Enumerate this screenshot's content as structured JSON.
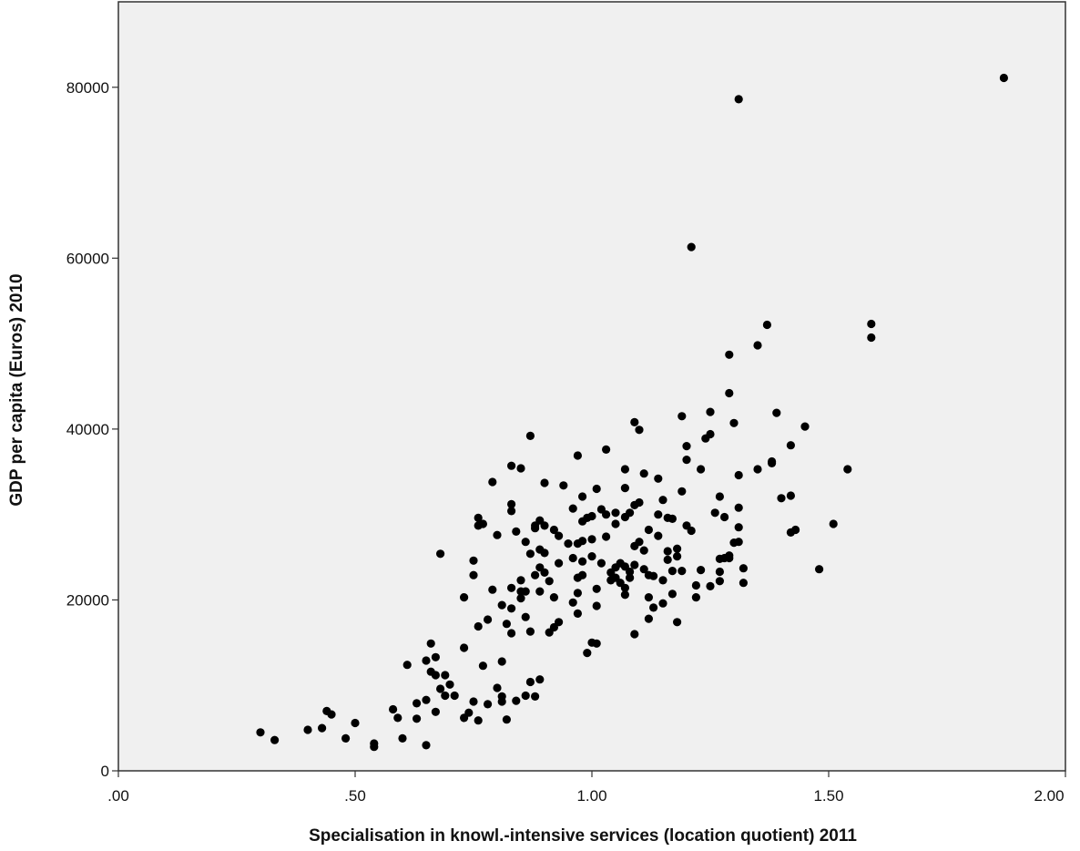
{
  "chart_data": {
    "type": "scatter",
    "xlabel": "Specialisation in knowl.-intensive services (location quotient) 2011",
    "ylabel": "GDP per capita (Euros) 2010",
    "xlim": [
      0,
      2
    ],
    "ylim": [
      0,
      90000
    ],
    "x_ticks": [
      0,
      0.5,
      1,
      1.5,
      2
    ],
    "x_tick_labels": [
      ".00",
      ".50",
      "1.00",
      "1.50",
      "2.00"
    ],
    "y_ticks": [
      0,
      20000,
      40000,
      60000,
      80000
    ],
    "y_tick_labels": [
      "0",
      "20000",
      "40000",
      "60000",
      "80000"
    ],
    "grid": false,
    "plot_background": "#f0f0f0",
    "point_color": "#000000",
    "points": [
      [
        0.3,
        4500
      ],
      [
        0.33,
        3600
      ],
      [
        0.4,
        4800
      ],
      [
        0.43,
        5000
      ],
      [
        0.44,
        7000
      ],
      [
        0.45,
        6600
      ],
      [
        0.48,
        3800
      ],
      [
        0.5,
        5600
      ],
      [
        0.54,
        3200
      ],
      [
        0.54,
        2800
      ],
      [
        0.58,
        7200
      ],
      [
        0.59,
        6200
      ],
      [
        0.6,
        3800
      ],
      [
        0.61,
        12400
      ],
      [
        0.63,
        7900
      ],
      [
        0.63,
        6100
      ],
      [
        0.65,
        3000
      ],
      [
        0.65,
        8300
      ],
      [
        0.65,
        12900
      ],
      [
        0.66,
        14900
      ],
      [
        0.66,
        11600
      ],
      [
        0.67,
        13300
      ],
      [
        0.67,
        11200
      ],
      [
        0.67,
        6900
      ],
      [
        0.68,
        9600
      ],
      [
        0.68,
        25400
      ],
      [
        0.69,
        11200
      ],
      [
        0.69,
        8800
      ],
      [
        0.7,
        10100
      ],
      [
        0.71,
        8800
      ],
      [
        0.73,
        6200
      ],
      [
        0.73,
        20300
      ],
      [
        0.73,
        14400
      ],
      [
        0.74,
        6800
      ],
      [
        0.75,
        8100
      ],
      [
        0.75,
        22900
      ],
      [
        0.75,
        24600
      ],
      [
        0.76,
        28700
      ],
      [
        0.76,
        29600
      ],
      [
        0.76,
        16900
      ],
      [
        0.76,
        5900
      ],
      [
        0.77,
        12300
      ],
      [
        0.77,
        28900
      ],
      [
        0.78,
        17700
      ],
      [
        0.78,
        7800
      ],
      [
        0.79,
        33800
      ],
      [
        0.79,
        21200
      ],
      [
        0.8,
        27600
      ],
      [
        0.8,
        9700
      ],
      [
        0.81,
        8100
      ],
      [
        0.81,
        19400
      ],
      [
        0.81,
        12800
      ],
      [
        0.81,
        8700
      ],
      [
        0.82,
        6000
      ],
      [
        0.82,
        17200
      ],
      [
        0.83,
        30400
      ],
      [
        0.83,
        31200
      ],
      [
        0.83,
        21400
      ],
      [
        0.83,
        19000
      ],
      [
        0.83,
        16100
      ],
      [
        0.83,
        35700
      ],
      [
        0.84,
        8200
      ],
      [
        0.84,
        28000
      ],
      [
        0.85,
        35400
      ],
      [
        0.85,
        22300
      ],
      [
        0.85,
        21000
      ],
      [
        0.85,
        20200
      ],
      [
        0.86,
        26800
      ],
      [
        0.86,
        21000
      ],
      [
        0.86,
        18000
      ],
      [
        0.86,
        8800
      ],
      [
        0.87,
        39200
      ],
      [
        0.87,
        25400
      ],
      [
        0.87,
        16300
      ],
      [
        0.87,
        10400
      ],
      [
        0.88,
        28700
      ],
      [
        0.88,
        28400
      ],
      [
        0.88,
        22900
      ],
      [
        0.88,
        8700
      ],
      [
        0.89,
        29300
      ],
      [
        0.89,
        25900
      ],
      [
        0.89,
        23800
      ],
      [
        0.89,
        21000
      ],
      [
        0.89,
        10700
      ],
      [
        0.9,
        33700
      ],
      [
        0.9,
        28700
      ],
      [
        0.9,
        25500
      ],
      [
        0.9,
        23200
      ],
      [
        0.91,
        22200
      ],
      [
        0.91,
        16200
      ],
      [
        0.92,
        28200
      ],
      [
        0.92,
        20300
      ],
      [
        0.92,
        16800
      ],
      [
        0.93,
        27500
      ],
      [
        0.93,
        24300
      ],
      [
        0.93,
        17400
      ],
      [
        0.94,
        33400
      ],
      [
        0.95,
        26600
      ],
      [
        0.96,
        30700
      ],
      [
        0.96,
        24900
      ],
      [
        0.96,
        19700
      ],
      [
        0.97,
        36900
      ],
      [
        0.97,
        26600
      ],
      [
        0.97,
        22600
      ],
      [
        0.97,
        20800
      ],
      [
        0.97,
        18400
      ],
      [
        0.98,
        29200
      ],
      [
        0.98,
        26900
      ],
      [
        0.98,
        24500
      ],
      [
        0.98,
        22900
      ],
      [
        0.98,
        32100
      ],
      [
        0.99,
        13800
      ],
      [
        0.99,
        29600
      ],
      [
        1.0,
        29800
      ],
      [
        1.0,
        27100
      ],
      [
        1.0,
        25100
      ],
      [
        1.0,
        15000
      ],
      [
        1.01,
        33000
      ],
      [
        1.01,
        21300
      ],
      [
        1.01,
        19300
      ],
      [
        1.01,
        14900
      ],
      [
        1.02,
        30600
      ],
      [
        1.02,
        24300
      ],
      [
        1.03,
        37600
      ],
      [
        1.03,
        30000
      ],
      [
        1.03,
        27400
      ],
      [
        1.04,
        23200
      ],
      [
        1.04,
        22300
      ],
      [
        1.05,
        30200
      ],
      [
        1.05,
        28900
      ],
      [
        1.05,
        23800
      ],
      [
        1.05,
        22600
      ],
      [
        1.06,
        24300
      ],
      [
        1.06,
        22000
      ],
      [
        1.07,
        35300
      ],
      [
        1.07,
        33100
      ],
      [
        1.07,
        29700
      ],
      [
        1.07,
        23900
      ],
      [
        1.07,
        21400
      ],
      [
        1.07,
        20600
      ],
      [
        1.08,
        30200
      ],
      [
        1.08,
        23300
      ],
      [
        1.08,
        22600
      ],
      [
        1.09,
        40800
      ],
      [
        1.09,
        31100
      ],
      [
        1.09,
        26300
      ],
      [
        1.09,
        24100
      ],
      [
        1.09,
        16000
      ],
      [
        1.1,
        39900
      ],
      [
        1.1,
        31400
      ],
      [
        1.1,
        26800
      ],
      [
        1.11,
        34800
      ],
      [
        1.11,
        25800
      ],
      [
        1.11,
        23600
      ],
      [
        1.12,
        28200
      ],
      [
        1.12,
        22900
      ],
      [
        1.12,
        20300
      ],
      [
        1.12,
        17800
      ],
      [
        1.13,
        22800
      ],
      [
        1.13,
        19100
      ],
      [
        1.14,
        34200
      ],
      [
        1.14,
        30000
      ],
      [
        1.14,
        27500
      ],
      [
        1.15,
        31700
      ],
      [
        1.15,
        22300
      ],
      [
        1.15,
        19600
      ],
      [
        1.16,
        29600
      ],
      [
        1.16,
        25700
      ],
      [
        1.16,
        24700
      ],
      [
        1.17,
        23400
      ],
      [
        1.17,
        20700
      ],
      [
        1.17,
        29500
      ],
      [
        1.18,
        26000
      ],
      [
        1.18,
        25100
      ],
      [
        1.18,
        17400
      ],
      [
        1.19,
        41500
      ],
      [
        1.19,
        32700
      ],
      [
        1.19,
        23400
      ],
      [
        1.2,
        38000
      ],
      [
        1.2,
        36400
      ],
      [
        1.2,
        28700
      ],
      [
        1.21,
        61300
      ],
      [
        1.21,
        28100
      ],
      [
        1.22,
        21700
      ],
      [
        1.22,
        20300
      ],
      [
        1.23,
        35300
      ],
      [
        1.23,
        23500
      ],
      [
        1.24,
        38900
      ],
      [
        1.25,
        42000
      ],
      [
        1.25,
        39400
      ],
      [
        1.25,
        21600
      ],
      [
        1.26,
        30200
      ],
      [
        1.27,
        32100
      ],
      [
        1.27,
        24800
      ],
      [
        1.27,
        23300
      ],
      [
        1.27,
        22200
      ],
      [
        1.28,
        29700
      ],
      [
        1.28,
        24900
      ],
      [
        1.29,
        48700
      ],
      [
        1.29,
        44200
      ],
      [
        1.29,
        24900
      ],
      [
        1.29,
        25200
      ],
      [
        1.3,
        40700
      ],
      [
        1.3,
        26700
      ],
      [
        1.31,
        78600
      ],
      [
        1.31,
        34600
      ],
      [
        1.31,
        30800
      ],
      [
        1.31,
        28500
      ],
      [
        1.31,
        26800
      ],
      [
        1.32,
        23700
      ],
      [
        1.32,
        22000
      ],
      [
        1.35,
        49800
      ],
      [
        1.35,
        35300
      ],
      [
        1.37,
        52200
      ],
      [
        1.38,
        36000
      ],
      [
        1.38,
        36200
      ],
      [
        1.39,
        41900
      ],
      [
        1.4,
        31900
      ],
      [
        1.42,
        38100
      ],
      [
        1.42,
        32200
      ],
      [
        1.42,
        27900
      ],
      [
        1.43,
        28200
      ],
      [
        1.45,
        40300
      ],
      [
        1.48,
        23600
      ],
      [
        1.51,
        28900
      ],
      [
        1.54,
        35300
      ],
      [
        1.59,
        52300
      ],
      [
        1.59,
        50700
      ],
      [
        1.87,
        81100
      ]
    ]
  }
}
